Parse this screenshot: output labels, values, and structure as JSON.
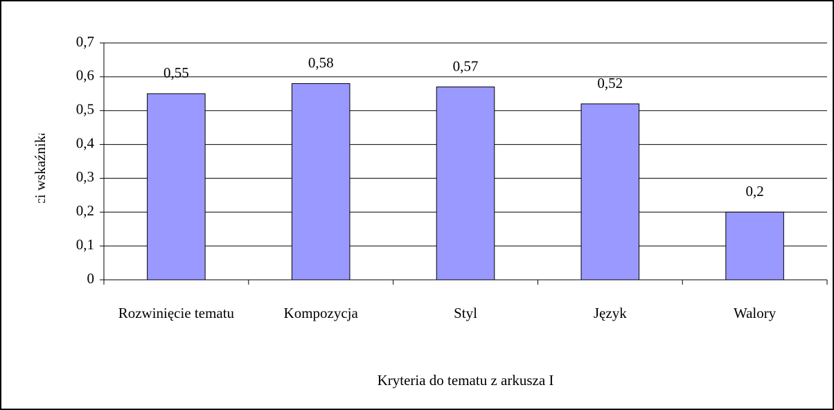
{
  "chart_data": {
    "type": "bar",
    "x_label": "Kryteria do tematu z arkusza I",
    "y_label": "Wartości wskaźnika łatwości",
    "categories": [
      "Rozwinięcie tematu",
      "Kompozycja",
      "Styl",
      "Język",
      "Walory"
    ],
    "values": [
      0.55,
      0.58,
      0.57,
      0.52,
      0.2
    ],
    "value_labels": [
      "0,55",
      "0,58",
      "0,57",
      "0,52",
      "0,2"
    ],
    "color": "#9999ff",
    "ylim": [
      0,
      0.7
    ],
    "yticks": [
      0,
      {
        "value": 0.1,
        "label": "0,1"
      },
      {
        "value": 0.2,
        "label": "0,2"
      },
      {
        "value": 0.3,
        "label": "0,3"
      },
      {
        "value": 0.4,
        "label": "0,4"
      },
      {
        "value": 0.5,
        "label": "0,5"
      },
      {
        "value": 0.6,
        "label": "0,6"
      },
      {
        "value": 0.7,
        "label": "0,7"
      }
    ],
    "grid": true
  }
}
